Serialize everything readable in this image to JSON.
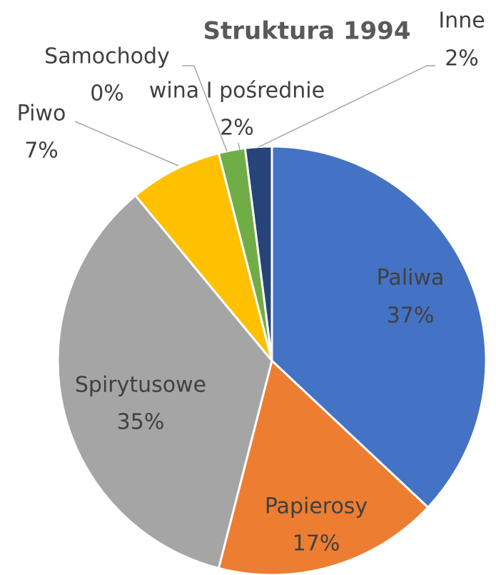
{
  "chart_data": {
    "type": "pie",
    "title": "Struktura 1994",
    "categories": [
      "Paliwa",
      "Papierosy",
      "Spirytusowe",
      "Piwo",
      "Samochody",
      "wina I pośrednie",
      "Inne"
    ],
    "values": [
      37,
      17,
      35,
      7,
      0,
      2,
      2
    ],
    "value_labels": [
      "37%",
      "17%",
      "35%",
      "7%",
      "0%",
      "2%",
      "2%"
    ],
    "colors": [
      "#4472c4",
      "#ed7d31",
      "#a5a5a5",
      "#ffc000",
      "#5b9bd5",
      "#70ad47",
      "#264478"
    ]
  }
}
